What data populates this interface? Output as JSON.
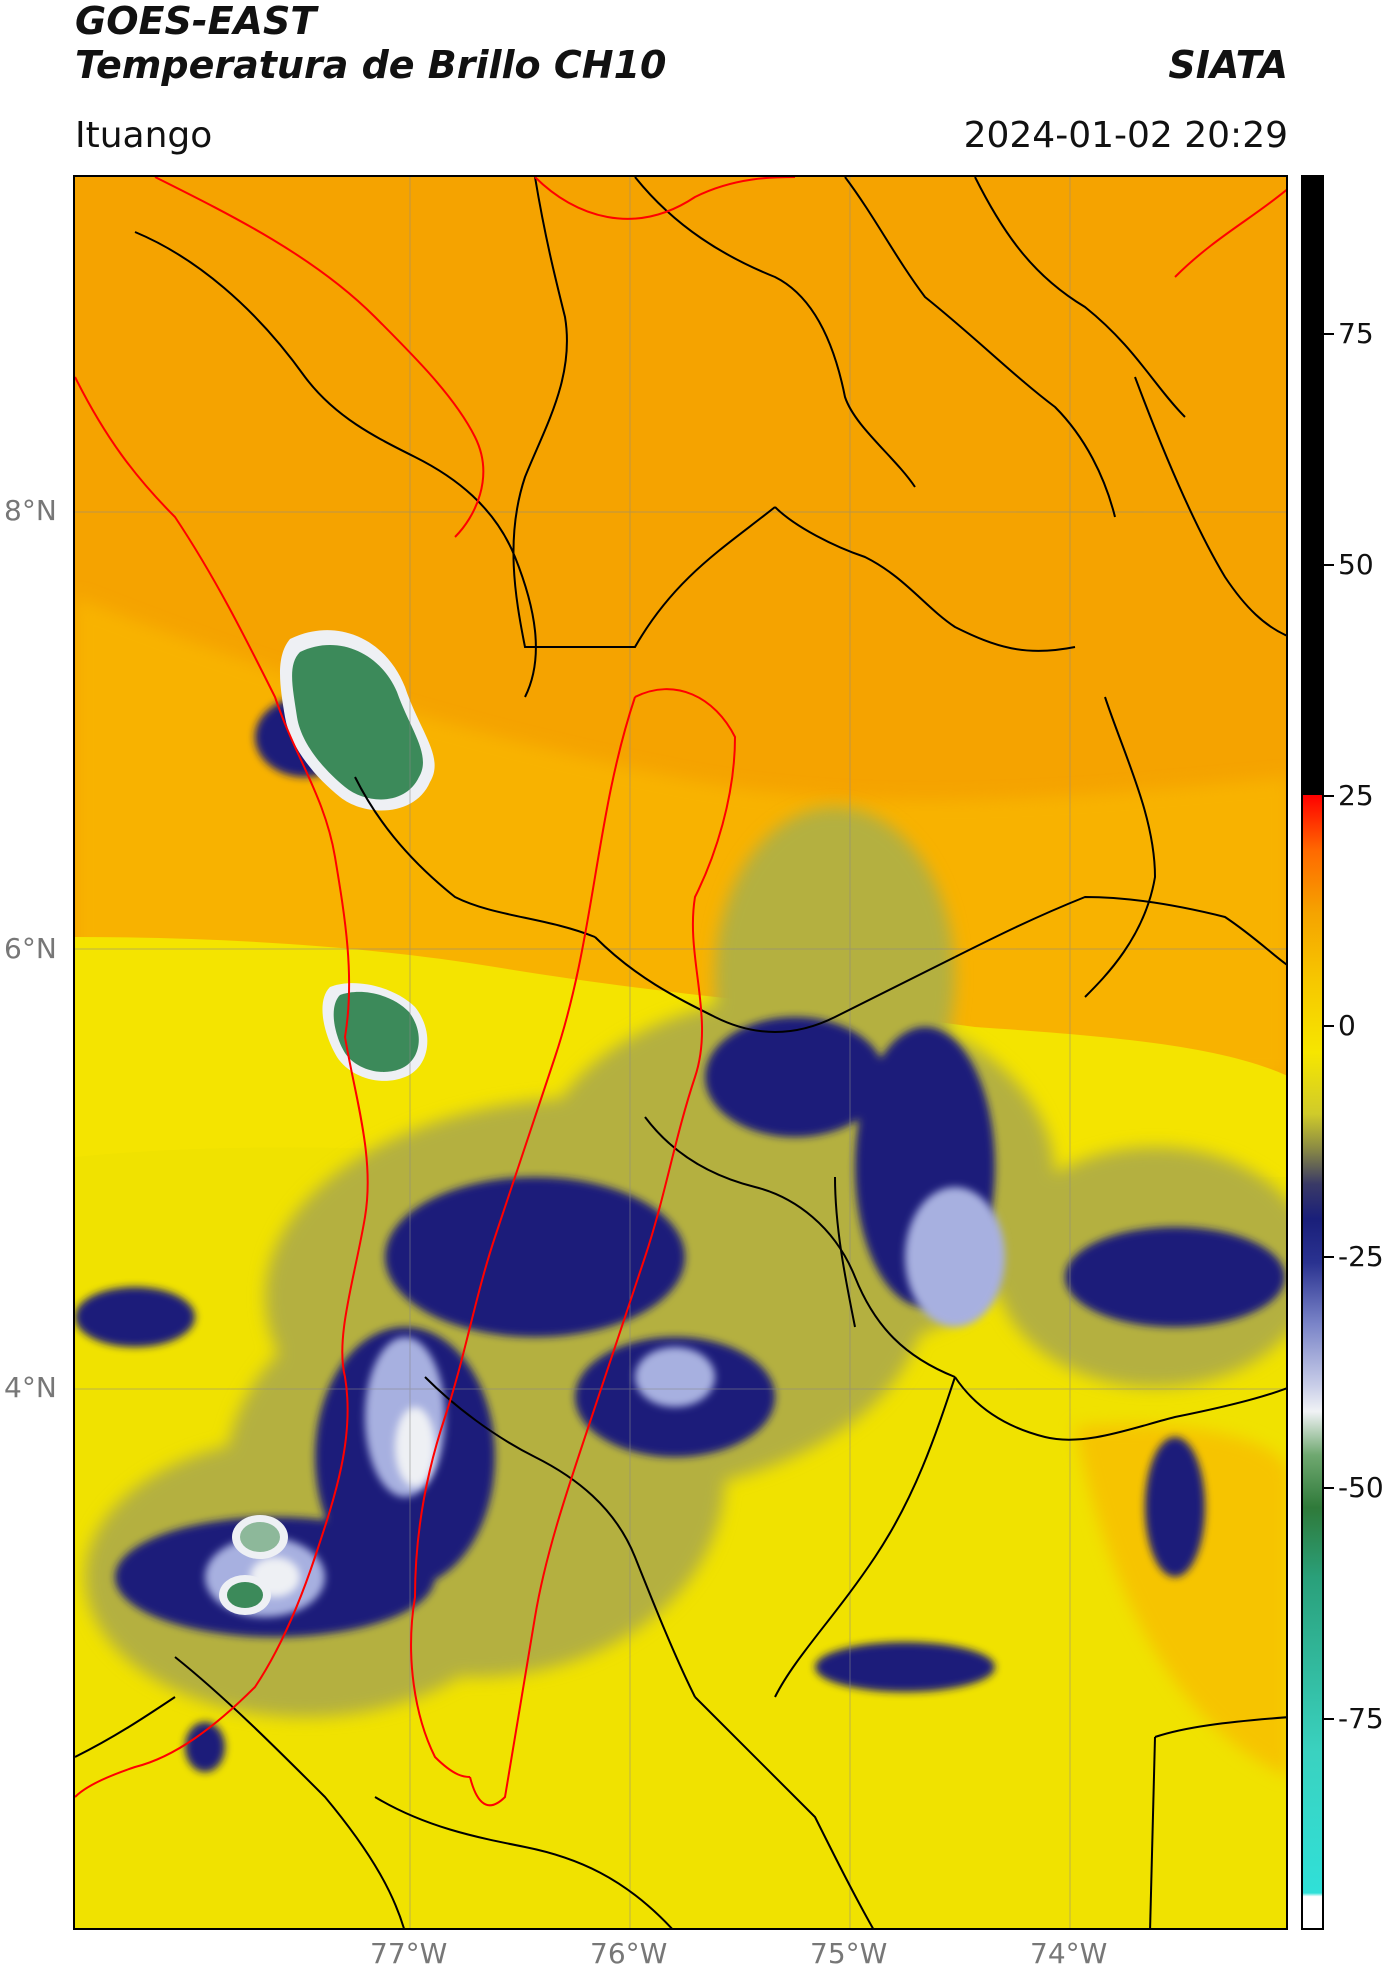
{
  "header": {
    "satellite": "GOES-EAST",
    "product": "Temperatura de Brillo CH10",
    "agency": "SIATA",
    "region": "Ituango",
    "timestamp": "2024-01-02 20:29"
  },
  "map": {
    "lat_labels": [
      "8°N",
      "6°N",
      "4°N"
    ],
    "lon_labels": [
      "77°W",
      "76°W",
      "75°W",
      "74°W"
    ],
    "grid": true,
    "colors": {
      "warm_orange": "#f5a300",
      "yellow": "#f6e600",
      "olive": "#9c9a3c",
      "dark_blue": "#1a1f7a",
      "light_blue": "#a7b0e0",
      "white": "#eef0f4",
      "green": "#3c8a5a",
      "boundary_black": "#000000",
      "boundary_red": "#ff0000"
    }
  },
  "colorbar": {
    "ticks": [
      "75",
      "50",
      "25",
      "0",
      "-25",
      "-50",
      "-75"
    ],
    "unit_note": ""
  }
}
